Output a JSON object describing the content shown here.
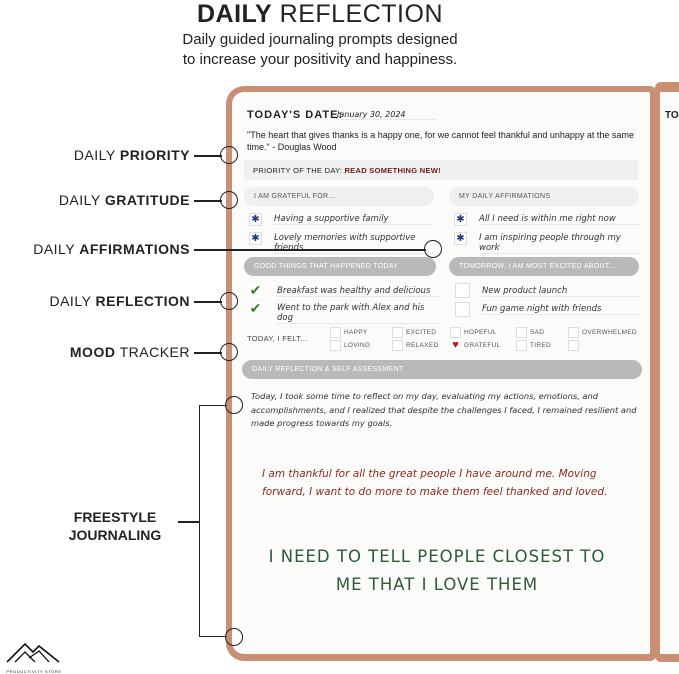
{
  "header": {
    "title_bold": "DAILY",
    "title_rest": " REFLECTION",
    "subtitle_line1": "Daily guided journaling prompts designed",
    "subtitle_line2": "to increase your positivity and happiness."
  },
  "callouts": [
    {
      "bold": "PRIORITY",
      "prefix": "DAILY "
    },
    {
      "bold": "GRATITUDE",
      "prefix": "DAILY "
    },
    {
      "bold": "AFFIRMATIONS",
      "prefix": "DAILY "
    },
    {
      "bold": "REFLECTION",
      "prefix": "DAILY "
    },
    {
      "bold": "MOOD",
      "suffix": " TRACKER"
    },
    {
      "line1": "FREESTYLE",
      "line2": "JOURNALING"
    }
  ],
  "journal": {
    "date_label": "TODAY'S DATE:",
    "date_value": "January 30, 2024",
    "quote": "\"The heart that gives thanks is a happy one, for we cannot feel thankful and unhappy at the same time.\" - Douglas Wood",
    "priority_label": "PRIORITY OF THE DAY:",
    "priority_value": "READ SOMETHING NEW!",
    "grateful_label": "I AM GRATEFUL FOR...",
    "grateful_items": [
      "Having a supportive family",
      "Lovely memories with supportive friends"
    ],
    "affirm_label": "MY DAILY AFFIRMATIONS",
    "affirm_items": [
      "All I need is within me right now",
      "I am inspiring people through my work"
    ],
    "good_label": "GOOD THINGS THAT HAPPENED TODAY",
    "good_items": [
      "Breakfast was healthy and delicious",
      "Went to the park with Alex and his dog"
    ],
    "tomorrow_label": "TOMORROW, I AM MOST EXCITED ABOUT...",
    "tomorrow_items": [
      "New product launch",
      "Fun game night with friends"
    ],
    "felt_label": "TODAY, I FELT...",
    "moods": [
      {
        "label": "HAPPY",
        "checked": false
      },
      {
        "label": "EXCITED",
        "checked": false
      },
      {
        "label": "HOPEFUL",
        "checked": false
      },
      {
        "label": "SAD",
        "checked": false
      },
      {
        "label": "OVERWHELMED",
        "checked": false
      },
      {
        "label": "LOVING",
        "checked": false
      },
      {
        "label": "RELAXED",
        "checked": false
      },
      {
        "label": "GRATEFUL",
        "checked": true
      },
      {
        "label": "TIRED",
        "checked": false
      },
      {
        "label": "",
        "checked": false
      }
    ],
    "reflection_label": "DAILY REFLECTION & SELF ASSESSMENT",
    "reflection_text": "Today, I took some time to reflect on my day, evaluating my actions, emotions, and accomplishments, and I realized that despite the challenges I faced, I remained resilient and made progress towards my goals.",
    "free_text": "I am thankful for all the great people I have around me. Moving forward, I want to do more to make them feel thanked and loved.",
    "free_caps": "I NEED TO TELL PEOPLE CLOSEST TO ME THAT I LOVE THEM",
    "next_page_date_label": "TOD"
  },
  "logo": {
    "text": "PRODUCTIVITY STORE"
  },
  "colors": {
    "cover": "#c98f74",
    "asterisk": "#1d3a7a",
    "check": "#3b7d2a",
    "heart": "#c0161c",
    "priority_value": "#6b1b1b",
    "free_text": "#8a2a1e",
    "free_caps": "#2f5a3a"
  }
}
